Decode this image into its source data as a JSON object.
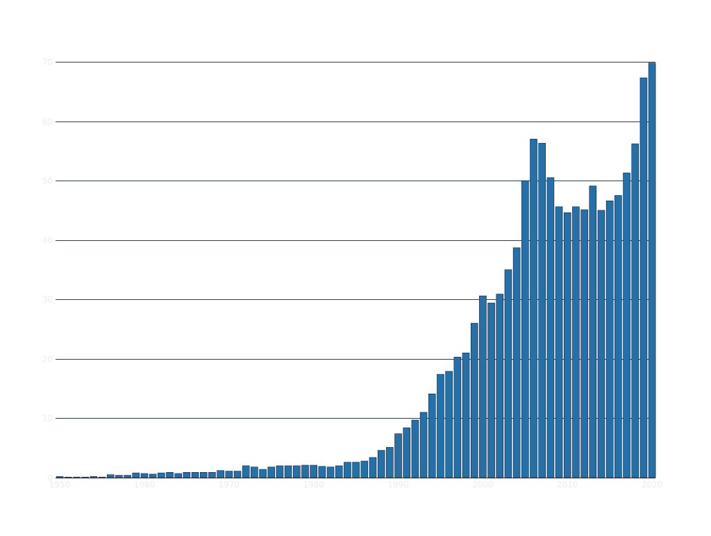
{
  "chart_data": {
    "type": "bar",
    "title": "",
    "xlabel": "",
    "ylabel": "",
    "ylim": [
      0,
      70
    ],
    "yticks": [
      "0",
      "10",
      "20",
      "30",
      "40",
      "50",
      "60",
      "70"
    ],
    "xticks": [
      {
        "value": 1950,
        "label": "1950"
      },
      {
        "value": 1960,
        "label": "1960"
      },
      {
        "value": 1970,
        "label": "1970"
      },
      {
        "value": 1980,
        "label": "1980"
      },
      {
        "value": 1990,
        "label": "1990"
      },
      {
        "value": 2000,
        "label": "2000"
      },
      {
        "value": 2010,
        "label": "2010"
      },
      {
        "value": 2020,
        "label": "2020"
      }
    ],
    "grid": "horizontal",
    "colors": {
      "bar": "#2471a9",
      "bar_edge": "#1a1a2e",
      "grid": "#2c3e50",
      "tick_label": "#e8edf2"
    },
    "x": [
      1950,
      1951,
      1952,
      1953,
      1954,
      1955,
      1956,
      1957,
      1958,
      1959,
      1960,
      1961,
      1962,
      1963,
      1964,
      1965,
      1966,
      1967,
      1968,
      1969,
      1970,
      1971,
      1972,
      1973,
      1974,
      1975,
      1976,
      1977,
      1978,
      1979,
      1980,
      1981,
      1982,
      1983,
      1984,
      1985,
      1986,
      1987,
      1988,
      1989,
      1990,
      1991,
      1992,
      1993,
      1994,
      1995,
      1996,
      1997,
      1998,
      1999,
      2000,
      2001,
      2002,
      2003,
      2004,
      2005,
      2006,
      2007,
      2008,
      2009,
      2010,
      2011,
      2012,
      2013,
      2014,
      2015,
      2016,
      2017,
      2018,
      2019,
      2020
    ],
    "values": [
      0.2,
      0.1,
      0.1,
      0.1,
      0.2,
      0.1,
      0.5,
      0.4,
      0.4,
      0.8,
      0.7,
      0.6,
      0.8,
      0.9,
      0.7,
      0.9,
      0.9,
      0.9,
      0.9,
      1.2,
      1.1,
      1.1,
      2.0,
      1.8,
      1.4,
      1.8,
      2.0,
      2.0,
      2.0,
      2.1,
      2.1,
      1.9,
      1.8,
      2.0,
      2.6,
      2.6,
      2.8,
      3.4,
      4.6,
      5.1,
      7.4,
      8.4,
      9.7,
      11.0,
      14.1,
      17.4,
      17.9,
      20.3,
      21.0,
      26.0,
      30.6,
      29.4,
      30.9,
      35.0,
      38.7,
      50.0,
      57.0,
      56.3,
      50.5,
      45.6,
      44.6,
      45.6,
      45.1,
      49.1,
      45.0,
      46.6,
      47.5,
      51.3,
      56.2,
      67.3,
      69.8
    ]
  }
}
